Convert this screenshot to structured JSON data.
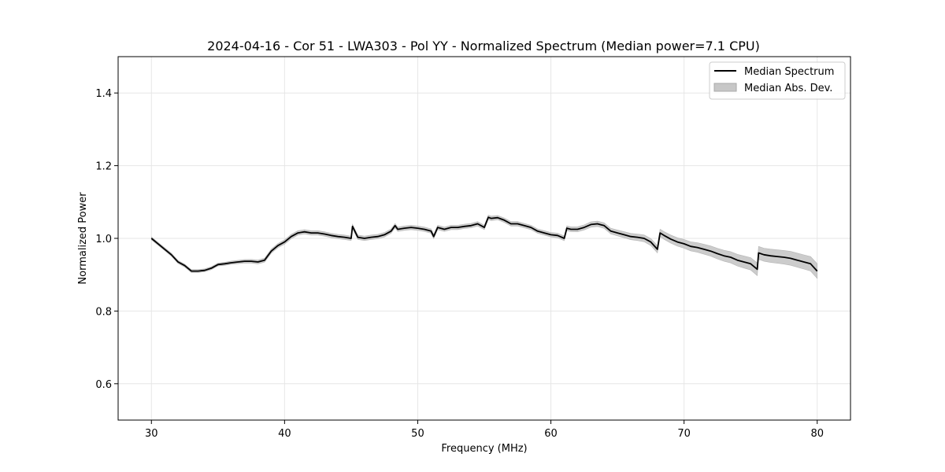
{
  "chart_data": {
    "type": "line",
    "title": "2024-04-16 - Cor 51 - LWA303 - Pol YY - Normalized Spectrum (Median power=7.1 CPU)",
    "xlabel": "Frequency (MHz)",
    "ylabel": "Normalized Power",
    "xlim": [
      27.5,
      82.5
    ],
    "ylim": [
      0.5,
      1.5
    ],
    "xticks": [
      30,
      40,
      50,
      60,
      70,
      80
    ],
    "yticks": [
      0.6,
      0.8,
      1.0,
      1.2,
      1.4
    ],
    "xtick_labels": [
      "30",
      "40",
      "50",
      "60",
      "70",
      "80"
    ],
    "ytick_labels": [
      "0.6",
      "0.8",
      "1.0",
      "1.2",
      "1.4"
    ],
    "grid": true,
    "legend_position": "top-right",
    "series": [
      {
        "name": "Median Spectrum",
        "color": "#000000",
        "x": [
          30.0,
          30.5,
          31.0,
          31.5,
          32.0,
          32.5,
          33.0,
          33.5,
          34.0,
          34.5,
          35.0,
          35.5,
          36.0,
          36.5,
          37.0,
          37.5,
          38.0,
          38.5,
          39.0,
          39.5,
          40.0,
          40.5,
          41.0,
          41.5,
          42.0,
          42.5,
          43.0,
          43.5,
          44.0,
          44.5,
          45.0,
          45.1,
          45.5,
          46.0,
          46.5,
          47.0,
          47.5,
          48.0,
          48.3,
          48.5,
          49.0,
          49.5,
          50.0,
          50.5,
          51.0,
          51.2,
          51.5,
          52.0,
          52.5,
          53.0,
          53.5,
          54.0,
          54.5,
          55.0,
          55.3,
          55.5,
          56.0,
          56.5,
          57.0,
          57.5,
          58.0,
          58.5,
          59.0,
          59.5,
          60.0,
          60.5,
          61.0,
          61.2,
          61.5,
          62.0,
          62.5,
          63.0,
          63.5,
          64.0,
          64.5,
          65.0,
          65.5,
          66.0,
          66.5,
          67.0,
          67.5,
          68.0,
          68.2,
          68.5,
          69.0,
          69.5,
          70.0,
          70.5,
          71.0,
          71.5,
          72.0,
          72.5,
          73.0,
          73.5,
          74.0,
          74.5,
          75.0,
          75.5,
          75.6,
          76.0,
          76.5,
          77.0,
          77.5,
          78.0,
          78.5,
          79.0,
          79.5,
          80.0
        ],
        "values": [
          1.0,
          0.985,
          0.97,
          0.955,
          0.935,
          0.925,
          0.91,
          0.91,
          0.912,
          0.918,
          0.928,
          0.93,
          0.933,
          0.935,
          0.937,
          0.937,
          0.935,
          0.94,
          0.965,
          0.98,
          0.99,
          1.005,
          1.015,
          1.018,
          1.015,
          1.015,
          1.012,
          1.008,
          1.005,
          1.003,
          1.0,
          1.033,
          1.003,
          1.0,
          1.003,
          1.005,
          1.01,
          1.02,
          1.035,
          1.025,
          1.028,
          1.03,
          1.028,
          1.025,
          1.02,
          1.005,
          1.03,
          1.025,
          1.03,
          1.03,
          1.033,
          1.035,
          1.04,
          1.03,
          1.058,
          1.055,
          1.057,
          1.05,
          1.04,
          1.04,
          1.035,
          1.03,
          1.02,
          1.015,
          1.01,
          1.008,
          1.0,
          1.028,
          1.025,
          1.025,
          1.03,
          1.038,
          1.04,
          1.035,
          1.02,
          1.015,
          1.01,
          1.005,
          1.003,
          1.0,
          0.99,
          0.97,
          1.015,
          1.008,
          0.998,
          0.99,
          0.985,
          0.978,
          0.975,
          0.97,
          0.965,
          0.958,
          0.952,
          0.948,
          0.94,
          0.935,
          0.93,
          0.915,
          0.96,
          0.955,
          0.952,
          0.95,
          0.948,
          0.945,
          0.94,
          0.935,
          0.93,
          0.91
        ]
      },
      {
        "name": "Median Abs. Dev.",
        "type": "band",
        "color": "#c7c7c7",
        "x": [
          30.0,
          35.0,
          40.0,
          45.0,
          50.0,
          55.0,
          60.0,
          65.0,
          68.0,
          70.0,
          72.0,
          74.0,
          76.0,
          78.0,
          80.0
        ],
        "halfwidth": [
          0.004,
          0.004,
          0.006,
          0.006,
          0.006,
          0.006,
          0.006,
          0.008,
          0.01,
          0.012,
          0.014,
          0.016,
          0.018,
          0.019,
          0.02
        ]
      }
    ]
  },
  "legend": {
    "entries": [
      {
        "label": "Median Spectrum",
        "kind": "line",
        "color": "#000000"
      },
      {
        "label": "Median Abs. Dev.",
        "kind": "patch",
        "color": "#c7c7c7"
      }
    ]
  }
}
